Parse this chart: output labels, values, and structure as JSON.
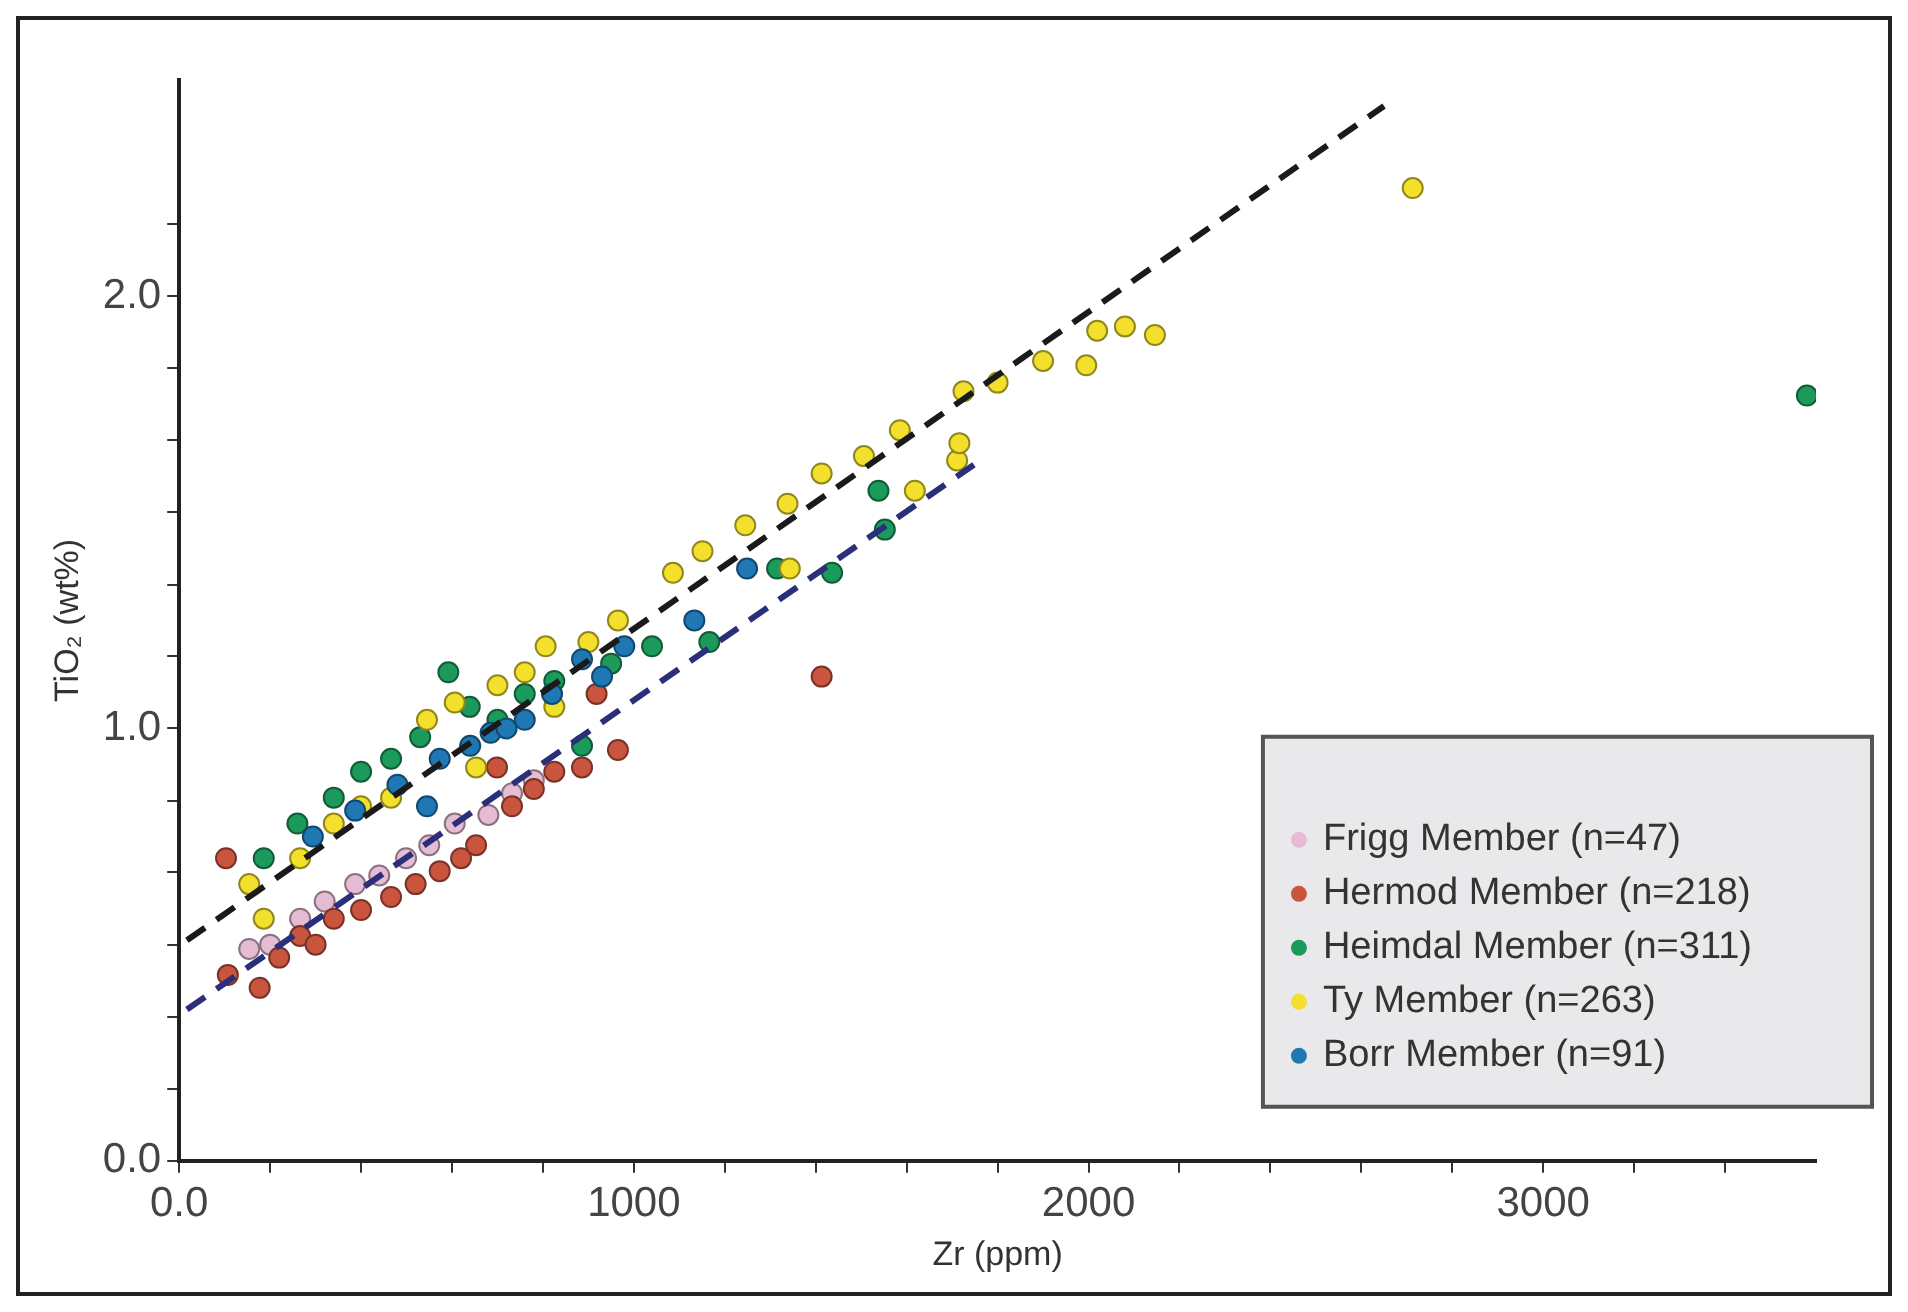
{
  "chart_data": {
    "type": "scatter",
    "xlabel": "Zr (ppm)",
    "ylabel": "TiO₂ (wt%)",
    "xlim": [
      0,
      3600
    ],
    "xticks": [
      {
        "value": 0,
        "label": "0.0"
      },
      {
        "value": 200,
        "label": null
      },
      {
        "value": 400,
        "label": null
      },
      {
        "value": 600,
        "label": null
      },
      {
        "value": 800,
        "label": null
      },
      1000,
      {
        "value": 1200,
        "label": null
      },
      {
        "value": 1400,
        "label": null
      },
      {
        "value": 1600,
        "label": null
      },
      {
        "value": 1800,
        "label": null
      },
      2000,
      {
        "value": 2200,
        "label": null
      },
      {
        "value": 2400,
        "label": null
      },
      {
        "value": 2600,
        "label": null
      },
      {
        "value": 2800,
        "label": null
      },
      3000,
      {
        "value": 3200,
        "label": null
      },
      {
        "value": 3400,
        "label": null
      }
    ],
    "ylim": [
      0,
      2.5
    ],
    "yticks": [
      {
        "value": 0,
        "label": "0.0"
      },
      {
        "value": 0.167,
        "label": null
      },
      {
        "value": 0.333,
        "label": null
      },
      {
        "value": 0.5,
        "label": null
      },
      {
        "value": 0.667,
        "label": null
      },
      {
        "value": 0.833,
        "label": null
      },
      {
        "value": 1,
        "label": "1.0"
      },
      {
        "value": 1.167,
        "label": null
      },
      {
        "value": 1.333,
        "label": null
      },
      {
        "value": 1.5,
        "label": null
      },
      {
        "value": 1.667,
        "label": null
      },
      {
        "value": 1.833,
        "label": null
      },
      {
        "value": 2,
        "label": "2.0"
      },
      {
        "value": 2.167,
        "label": null
      }
    ],
    "marker": "circle",
    "legend": "bottom right",
    "series": [
      {
        "type": "line",
        "color": "#1a1a1a",
        "line_style": "dashed",
        "marker": "none",
        "x": [
          17,
          2650
        ],
        "values": [
          0.51,
          2.44
        ]
      },
      {
        "type": "line",
        "color": "#2b2f7a",
        "line_style": "dashed",
        "marker": "none",
        "x": [
          17,
          1748
        ],
        "values": [
          0.35,
          1.61
        ]
      },
      {
        "name": "Frigg Member (n=47)",
        "color": "#e6bcd4",
        "x": [
          154,
          200,
          266,
          320,
          387,
          440,
          499,
          550,
          606,
          680,
          732,
          780
        ],
        "values": [
          0.49,
          0.5,
          0.56,
          0.6,
          0.64,
          0.66,
          0.7,
          0.73,
          0.78,
          0.8,
          0.85,
          0.88
        ]
      },
      {
        "name": "Hermod Member (n=218)",
        "color": "#c9553f",
        "x": [
          103,
          107,
          177,
          220,
          266,
          300,
          340,
          400,
          466,
          520,
          573,
          620,
          653,
          699,
          732,
          780,
          825,
          886,
          918,
          965,
          1413
        ],
        "values": [
          0.7,
          0.43,
          0.4,
          0.47,
          0.52,
          0.5,
          0.56,
          0.58,
          0.61,
          0.64,
          0.67,
          0.7,
          0.73,
          0.91,
          0.82,
          0.86,
          0.9,
          0.91,
          1.08,
          0.95,
          1.12
        ]
      },
      {
        "name": "Heimdal Member (n=311)",
        "color": "#1c9a5c",
        "x": [
          186,
          260,
          340,
          400,
          466,
          530,
          592,
          639,
          700,
          760,
          825,
          886,
          950,
          1040,
          1166,
          1315,
          1436,
          1538,
          1552,
          3580
        ],
        "values": [
          0.7,
          0.78,
          0.84,
          0.9,
          0.93,
          0.98,
          1.13,
          1.05,
          1.02,
          1.08,
          1.11,
          0.96,
          1.15,
          1.19,
          1.2,
          1.37,
          1.36,
          1.55,
          1.46,
          1.77
        ]
      },
      {
        "name": "Ty Member (n=263)",
        "color": "#f2e02c",
        "x": [
          154,
          186,
          266,
          340,
          400,
          466,
          545,
          606,
          653,
          700,
          760,
          806,
          825,
          900,
          965,
          1086,
          1151,
          1245,
          1338,
          1343,
          1413,
          1506,
          1585,
          1618,
          1711,
          1716,
          1725,
          1800,
          1900,
          1995,
          2019,
          2080,
          2146,
          2713
        ],
        "values": [
          0.64,
          0.56,
          0.7,
          0.78,
          0.82,
          0.84,
          1.02,
          1.06,
          0.91,
          1.1,
          1.13,
          1.19,
          1.05,
          1.2,
          1.25,
          1.36,
          1.41,
          1.47,
          1.52,
          1.37,
          1.59,
          1.63,
          1.69,
          1.55,
          1.62,
          1.66,
          1.78,
          1.8,
          1.85,
          1.84,
          1.92,
          1.93,
          1.91,
          2.25
        ]
      },
      {
        "name": "Borr Member (n=91)",
        "color": "#1f78b4",
        "x": [
          294,
          387,
          480,
          545,
          573,
          640,
          685,
          720,
          760,
          820,
          886,
          930,
          979,
          1133,
          1249
        ],
        "values": [
          0.75,
          0.81,
          0.87,
          0.82,
          0.93,
          0.96,
          0.99,
          1.0,
          1.02,
          1.08,
          1.16,
          1.12,
          1.19,
          1.25,
          1.37
        ]
      }
    ]
  }
}
